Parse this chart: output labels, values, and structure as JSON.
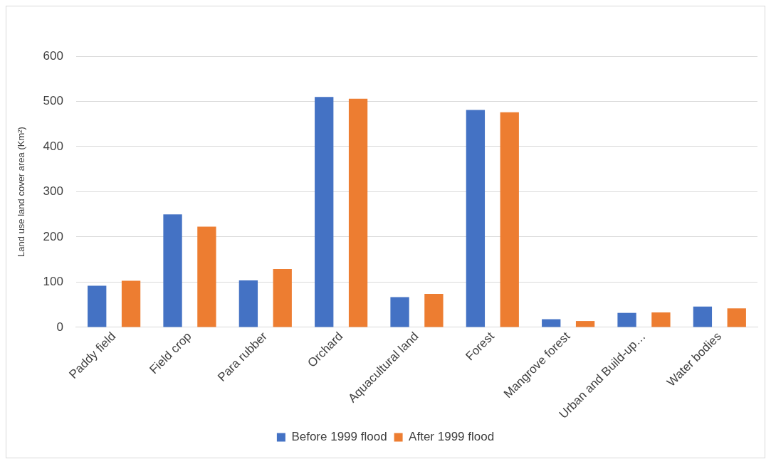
{
  "chart_data": {
    "type": "bar",
    "ylabel": "Land use land cover area (Km²)",
    "categories": [
      "Paddy field",
      "Field crop",
      "Para rubber",
      "Orchard",
      "Aquacultural land",
      "Forest",
      "Mangrove forest",
      "Urban and Build-up…",
      "Water bodies"
    ],
    "series": [
      {
        "name": "Before 1999 flood",
        "color": "#4472c4",
        "values": [
          92,
          250,
          104,
          510,
          67,
          481,
          18,
          32,
          46
        ]
      },
      {
        "name": "After 1999 flood",
        "color": "#ed7d31",
        "values": [
          103,
          223,
          129,
          506,
          74,
          476,
          14,
          33,
          42
        ]
      }
    ],
    "ylim": [
      0,
      600
    ],
    "yticks": [
      0,
      100,
      200,
      300,
      400,
      500,
      600
    ],
    "grid": "y",
    "legend": "bottom"
  }
}
